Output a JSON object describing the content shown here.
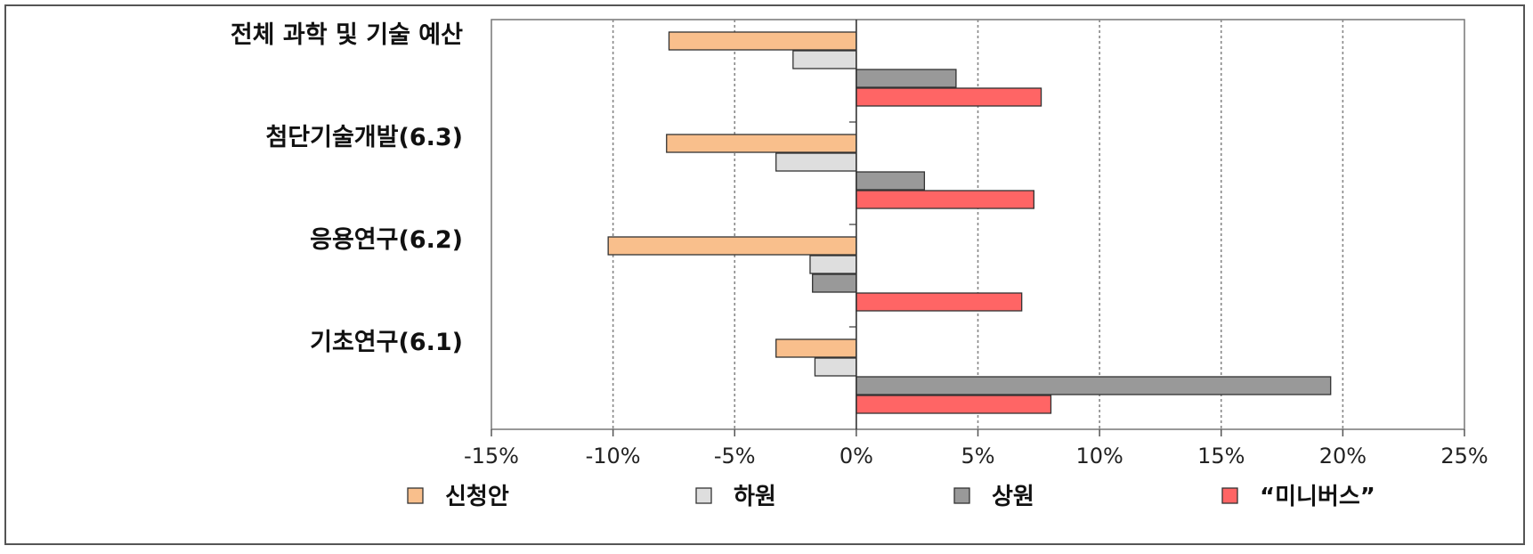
{
  "chart_data": {
    "type": "bar",
    "orientation": "horizontal",
    "categories": [
      "전체 과학 및 기술 예산",
      "첨단기술개발(6.3)",
      "응용연구(6.2)",
      "기초연구(6.1)"
    ],
    "series": [
      {
        "name": "신청안",
        "color": "#f9bf8c",
        "values": [
          -7.7,
          -7.8,
          -10.2,
          -3.3
        ]
      },
      {
        "name": "하원",
        "color": "#dedede",
        "values": [
          -2.6,
          -3.3,
          -1.9,
          -1.7
        ]
      },
      {
        "name": "상원",
        "color": "#999999",
        "values": [
          4.1,
          2.8,
          -1.8,
          19.5
        ]
      },
      {
        "name": "“미니버스”",
        "color": "#ff6565",
        "values": [
          7.6,
          7.3,
          6.8,
          8.0
        ]
      }
    ],
    "x_ticks": [
      "-15%",
      "-10%",
      "-5%",
      "0%",
      "5%",
      "10%",
      "15%",
      "20%",
      "25%"
    ],
    "xlim": [
      -15,
      25
    ],
    "grid": "vertical dashed",
    "legend_position": "bottom"
  }
}
